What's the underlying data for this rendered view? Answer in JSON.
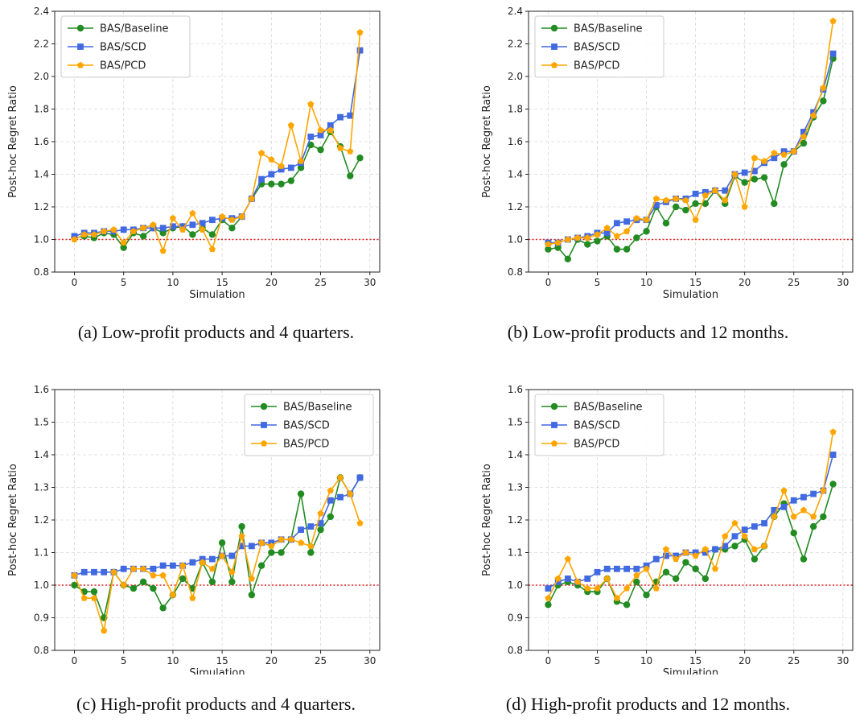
{
  "chart_data": [
    {
      "type": "line",
      "caption": "(a) Low-profit products and 4 quarters.",
      "xlabel": "Simulation",
      "ylabel": "Post-hoc Regret Ratio",
      "xlim": [
        -2,
        31
      ],
      "ylim": [
        0.8,
        2.4
      ],
      "xticks": [
        0,
        5,
        10,
        15,
        20,
        25,
        30
      ],
      "yticks": [
        "0.8",
        "1.0",
        "1.2",
        "1.4",
        "1.6",
        "1.8",
        "2.0",
        "2.2",
        "2.4"
      ],
      "reference_line": 1.0,
      "legend_position": "upper-left",
      "grid": true,
      "x": [
        0,
        1,
        2,
        3,
        4,
        5,
        6,
        7,
        8,
        9,
        10,
        11,
        12,
        13,
        14,
        15,
        16,
        17,
        18,
        19,
        20,
        21,
        22,
        23,
        24,
        25,
        26,
        27,
        28,
        29
      ],
      "series": [
        {
          "name": "BAS/Baseline",
          "color": "#228B22",
          "marker": "circle",
          "values": [
            1.01,
            1.02,
            1.01,
            1.04,
            1.03,
            0.95,
            1.04,
            1.02,
            1.07,
            1.04,
            1.07,
            1.08,
            1.03,
            1.07,
            1.03,
            1.12,
            1.07,
            1.14,
            1.25,
            1.34,
            1.34,
            1.34,
            1.36,
            1.44,
            1.58,
            1.55,
            1.66,
            1.57,
            1.39,
            1.5
          ]
        },
        {
          "name": "BAS/SCD",
          "color": "#4169E1",
          "marker": "square",
          "values": [
            1.02,
            1.04,
            1.04,
            1.05,
            1.05,
            1.06,
            1.06,
            1.07,
            1.07,
            1.07,
            1.08,
            1.08,
            1.09,
            1.1,
            1.12,
            1.13,
            1.13,
            1.14,
            1.25,
            1.37,
            1.4,
            1.43,
            1.44,
            1.47,
            1.63,
            1.64,
            1.7,
            1.75,
            1.76,
            2.16
          ]
        },
        {
          "name": "BAS/PCD",
          "color": "#FFA500",
          "marker": "pentagon",
          "values": [
            1.0,
            1.03,
            1.03,
            1.05,
            1.06,
            0.98,
            1.05,
            1.07,
            1.09,
            0.93,
            1.13,
            1.06,
            1.16,
            1.06,
            0.94,
            1.14,
            1.12,
            1.14,
            1.25,
            1.53,
            1.49,
            1.45,
            1.7,
            1.48,
            1.83,
            1.67,
            1.67,
            1.56,
            1.54,
            2.27
          ]
        }
      ]
    },
    {
      "type": "line",
      "caption": "(b) Low-profit products and 12 months.",
      "xlabel": "Simulation",
      "ylabel": "Post-hoc Regret Ratio",
      "xlim": [
        -2,
        31
      ],
      "ylim": [
        0.8,
        2.4
      ],
      "xticks": [
        0,
        5,
        10,
        15,
        20,
        25,
        30
      ],
      "yticks": [
        "0.8",
        "1.0",
        "1.2",
        "1.4",
        "1.6",
        "1.8",
        "2.0",
        "2.2",
        "2.4"
      ],
      "reference_line": 1.0,
      "legend_position": "upper-left",
      "grid": true,
      "x": [
        0,
        1,
        2,
        3,
        4,
        5,
        6,
        7,
        8,
        9,
        10,
        11,
        12,
        13,
        14,
        15,
        16,
        17,
        18,
        19,
        20,
        21,
        22,
        23,
        24,
        25,
        26,
        27,
        28,
        29
      ],
      "series": [
        {
          "name": "BAS/Baseline",
          "color": "#228B22",
          "marker": "circle",
          "values": [
            0.94,
            0.95,
            0.88,
            1.0,
            0.97,
            0.99,
            1.02,
            0.94,
            0.94,
            1.01,
            1.05,
            1.2,
            1.1,
            1.2,
            1.18,
            1.22,
            1.22,
            1.3,
            1.22,
            1.39,
            1.35,
            1.37,
            1.38,
            1.22,
            1.46,
            1.54,
            1.59,
            1.75,
            1.85,
            2.11
          ]
        },
        {
          "name": "BAS/SCD",
          "color": "#4169E1",
          "marker": "square",
          "values": [
            0.98,
            0.98,
            1.0,
            1.01,
            1.02,
            1.04,
            1.04,
            1.1,
            1.11,
            1.12,
            1.12,
            1.21,
            1.23,
            1.25,
            1.25,
            1.28,
            1.29,
            1.3,
            1.3,
            1.4,
            1.41,
            1.42,
            1.47,
            1.5,
            1.54,
            1.54,
            1.66,
            1.78,
            1.92,
            2.14
          ]
        },
        {
          "name": "BAS/PCD",
          "color": "#FFA500",
          "marker": "pentagon",
          "values": [
            0.97,
            0.98,
            1.0,
            1.01,
            1.01,
            1.03,
            1.07,
            1.02,
            1.05,
            1.13,
            1.12,
            1.25,
            1.24,
            1.25,
            1.24,
            1.12,
            1.27,
            1.3,
            1.24,
            1.4,
            1.2,
            1.5,
            1.48,
            1.53,
            1.52,
            1.54,
            1.63,
            1.76,
            1.93,
            2.34
          ]
        }
      ]
    },
    {
      "type": "line",
      "caption": "(c) High-profit products and 4 quarters.",
      "xlabel": "Simulation",
      "ylabel": "Post-hoc Regret Ratio",
      "xlim": [
        -2,
        31
      ],
      "ylim": [
        0.8,
        1.6
      ],
      "xticks": [
        0,
        5,
        10,
        15,
        20,
        25,
        30
      ],
      "yticks": [
        "0.8",
        "0.9",
        "1.0",
        "1.1",
        "1.2",
        "1.3",
        "1.4",
        "1.5",
        "1.6"
      ],
      "reference_line": 1.0,
      "legend_position": "upper-right",
      "grid": true,
      "x": [
        0,
        1,
        2,
        3,
        4,
        5,
        6,
        7,
        8,
        9,
        10,
        11,
        12,
        13,
        14,
        15,
        16,
        17,
        18,
        19,
        20,
        21,
        22,
        23,
        24,
        25,
        26,
        27,
        28,
        29
      ],
      "series": [
        {
          "name": "BAS/Baseline",
          "color": "#228B22",
          "marker": "circle",
          "values": [
            1.0,
            0.98,
            0.98,
            0.9,
            1.04,
            1.0,
            0.99,
            1.01,
            0.99,
            0.93,
            0.97,
            1.02,
            0.99,
            1.07,
            1.01,
            1.13,
            1.01,
            1.18,
            0.97,
            1.06,
            1.1,
            1.1,
            1.14,
            1.28,
            1.1,
            1.17,
            1.21,
            1.33,
            1.28,
            1.33
          ]
        },
        {
          "name": "BAS/SCD",
          "color": "#4169E1",
          "marker": "square",
          "values": [
            1.03,
            1.04,
            1.04,
            1.04,
            1.04,
            1.05,
            1.05,
            1.05,
            1.05,
            1.06,
            1.06,
            1.06,
            1.07,
            1.08,
            1.08,
            1.09,
            1.09,
            1.12,
            1.12,
            1.13,
            1.13,
            1.14,
            1.14,
            1.17,
            1.18,
            1.19,
            1.26,
            1.27,
            1.28,
            1.33
          ]
        },
        {
          "name": "BAS/PCD",
          "color": "#FFA500",
          "marker": "pentagon",
          "values": [
            1.03,
            0.96,
            0.96,
            0.86,
            1.04,
            1.0,
            1.05,
            1.05,
            1.03,
            1.03,
            0.97,
            1.06,
            0.96,
            1.07,
            1.05,
            1.09,
            1.04,
            1.15,
            1.02,
            1.13,
            1.12,
            1.14,
            1.14,
            1.13,
            1.12,
            1.22,
            1.29,
            1.33,
            1.28,
            1.19
          ]
        }
      ]
    },
    {
      "type": "line",
      "caption": "(d) High-profit products and 12 months.",
      "xlabel": "Simulation",
      "ylabel": "Post-hoc Regret Ratio",
      "xlim": [
        -2,
        31
      ],
      "ylim": [
        0.8,
        1.6
      ],
      "xticks": [
        0,
        5,
        10,
        15,
        20,
        25,
        30
      ],
      "yticks": [
        "0.8",
        "0.9",
        "1.0",
        "1.1",
        "1.2",
        "1.3",
        "1.4",
        "1.5",
        "1.6"
      ],
      "reference_line": 1.0,
      "legend_position": "upper-left",
      "grid": true,
      "x": [
        0,
        1,
        2,
        3,
        4,
        5,
        6,
        7,
        8,
        9,
        10,
        11,
        12,
        13,
        14,
        15,
        16,
        17,
        18,
        19,
        20,
        21,
        22,
        23,
        24,
        25,
        26,
        27,
        28,
        29
      ],
      "series": [
        {
          "name": "BAS/Baseline",
          "color": "#228B22",
          "marker": "circle",
          "values": [
            0.94,
            1.0,
            1.01,
            1.0,
            0.98,
            0.98,
            1.02,
            0.95,
            0.94,
            1.01,
            0.97,
            1.01,
            1.04,
            1.02,
            1.07,
            1.05,
            1.02,
            1.11,
            1.11,
            1.12,
            1.14,
            1.08,
            1.12,
            1.21,
            1.25,
            1.16,
            1.08,
            1.18,
            1.21,
            1.31
          ]
        },
        {
          "name": "BAS/SCD",
          "color": "#4169E1",
          "marker": "square",
          "values": [
            0.99,
            1.01,
            1.02,
            1.01,
            1.02,
            1.04,
            1.05,
            1.05,
            1.05,
            1.05,
            1.06,
            1.08,
            1.09,
            1.09,
            1.1,
            1.1,
            1.1,
            1.11,
            1.12,
            1.15,
            1.17,
            1.18,
            1.19,
            1.23,
            1.24,
            1.26,
            1.27,
            1.28,
            1.29,
            1.4
          ]
        },
        {
          "name": "BAS/PCD",
          "color": "#FFA500",
          "marker": "pentagon",
          "values": [
            0.96,
            1.02,
            1.08,
            1.01,
            0.99,
            0.99,
            1.02,
            0.96,
            0.99,
            1.03,
            1.05,
            0.99,
            1.11,
            1.08,
            1.1,
            1.09,
            1.11,
            1.05,
            1.15,
            1.19,
            1.15,
            1.11,
            1.12,
            1.21,
            1.29,
            1.21,
            1.23,
            1.21,
            1.29,
            1.47
          ]
        }
      ]
    }
  ]
}
